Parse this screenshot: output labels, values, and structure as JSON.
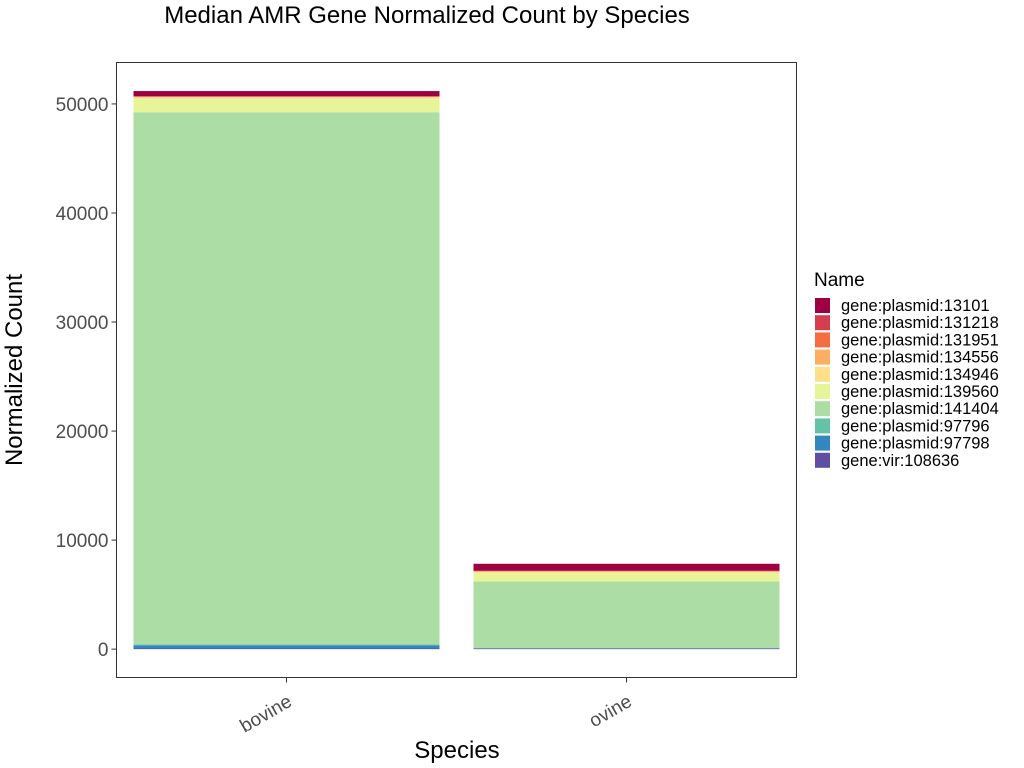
{
  "chart_data": {
    "type": "bar",
    "stacked": true,
    "title": "Median AMR Gene Normalized Count by Species",
    "xlabel": "Species",
    "ylabel": "Normalized Count",
    "categories": [
      "bovine",
      "ovine"
    ],
    "ylim": [
      -2600,
      53800
    ],
    "yticks": [
      0,
      10000,
      20000,
      30000,
      40000,
      50000
    ],
    "yticklabels": [
      "0",
      "10000",
      "20000",
      "30000",
      "40000",
      "50000"
    ],
    "legend": {
      "title": "Name",
      "position": "right"
    },
    "grid": false,
    "series": [
      {
        "name": "gene:vir:108636",
        "color": "#5E4FA2",
        "values": [
          60,
          60
        ]
      },
      {
        "name": "gene:plasmid:97798",
        "color": "#3288BD",
        "values": [
          300,
          20
        ]
      },
      {
        "name": "gene:plasmid:97796",
        "color": "#66C2A5",
        "values": [
          80,
          20
        ]
      },
      {
        "name": "gene:plasmid:141404",
        "color": "#ABDDA4",
        "values": [
          48800,
          6100
        ]
      },
      {
        "name": "gene:plasmid:139560",
        "color": "#E6F598",
        "values": [
          1250,
          800
        ]
      },
      {
        "name": "gene:plasmid:134946",
        "color": "#FEE08B",
        "values": [
          130,
          100
        ]
      },
      {
        "name": "gene:plasmid:134556",
        "color": "#FDAE61",
        "values": [
          30,
          30
        ]
      },
      {
        "name": "gene:plasmid:131951",
        "color": "#F46D43",
        "values": [
          30,
          30
        ]
      },
      {
        "name": "gene:plasmid:131218",
        "color": "#D53E4F",
        "values": [
          30,
          30
        ]
      },
      {
        "name": "gene:plasmid:13101",
        "color": "#9E0142",
        "values": [
          470,
          640
        ]
      }
    ]
  }
}
